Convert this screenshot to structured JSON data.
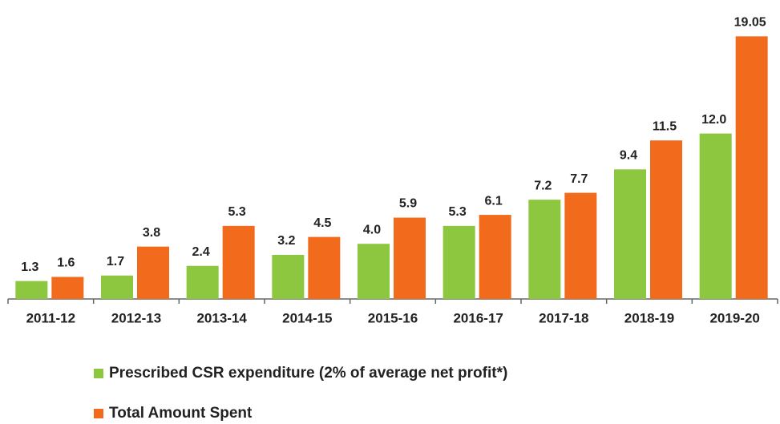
{
  "chart_data": {
    "type": "bar",
    "categories": [
      "2011-12",
      "2012-13",
      "2013-14",
      "2014-15",
      "2015-16",
      "2016-17",
      "2017-18",
      "2018-19",
      "2019-20"
    ],
    "series": [
      {
        "name": "Prescribed CSR expenditure (2% of average net profit*)",
        "color": "#8dc63f",
        "values": [
          1.3,
          1.7,
          2.4,
          3.2,
          4.0,
          5.3,
          7.2,
          9.4,
          12.0
        ],
        "value_labels": [
          "1.3",
          "1.7",
          "2.4",
          "3.2",
          "4.0",
          "5.3",
          "7.2",
          "9.4",
          "12.0"
        ]
      },
      {
        "name": "Total Amount Spent",
        "color": "#f26b1d",
        "values": [
          1.6,
          3.8,
          5.3,
          4.5,
          5.9,
          6.1,
          7.7,
          11.5,
          19.05
        ],
        "value_labels": [
          "1.6",
          "3.8",
          "5.3",
          "4.5",
          "5.9",
          "6.1",
          "7.7",
          "11.5",
          "19.05"
        ]
      }
    ],
    "ylim": [
      0,
      20
    ],
    "legend": "bottom"
  }
}
